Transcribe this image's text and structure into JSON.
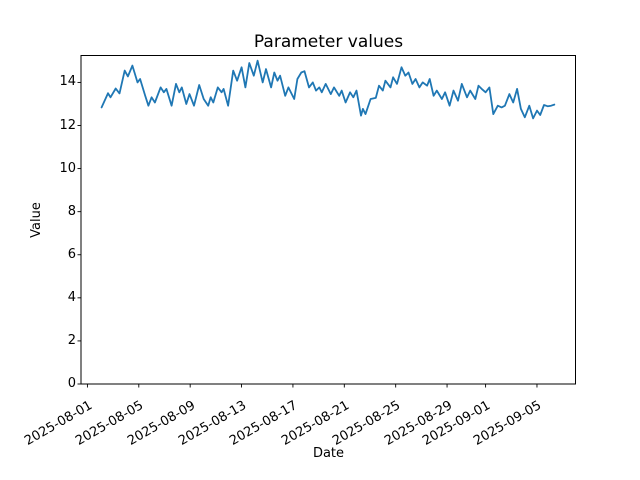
{
  "chart": {
    "title": "Parameter values",
    "xlabel": "Date",
    "ylabel": "Value"
  },
  "chart_data": {
    "type": "line",
    "title": "Parameter values",
    "xlabel": "Date",
    "ylabel": "Value",
    "legend": null,
    "grid": false,
    "series_color": "#1f77b4",
    "x_unit": "days since 2025-08-01 00:00",
    "x_start_date": "2025-08-01",
    "xlim": [
      -0.5,
      38.0
    ],
    "ylim": [
      0,
      15.25
    ],
    "y_ticks": [
      0,
      2,
      4,
      6,
      8,
      10,
      12,
      14
    ],
    "x_ticks": [
      {
        "t": 0,
        "label": "2025-08-01"
      },
      {
        "t": 4,
        "label": "2025-08-05"
      },
      {
        "t": 8,
        "label": "2025-08-09"
      },
      {
        "t": 12,
        "label": "2025-08-13"
      },
      {
        "t": 16,
        "label": "2025-08-17"
      },
      {
        "t": 20,
        "label": "2025-08-21"
      },
      {
        "t": 24,
        "label": "2025-08-25"
      },
      {
        "t": 28,
        "label": "2025-08-29"
      },
      {
        "t": 31,
        "label": "2025-09-01"
      },
      {
        "t": 35,
        "label": "2025-09-05"
      }
    ],
    "x": [
      1.1,
      1.4,
      1.6,
      1.8,
      2.2,
      2.5,
      2.9,
      3.15,
      3.5,
      3.9,
      4.1,
      4.5,
      4.75,
      5.0,
      5.25,
      5.7,
      5.95,
      6.15,
      6.55,
      6.9,
      7.15,
      7.35,
      7.7,
      7.95,
      8.3,
      8.7,
      9.05,
      9.4,
      9.6,
      9.8,
      10.15,
      10.45,
      10.6,
      10.95,
      11.35,
      11.65,
      12.0,
      12.3,
      12.6,
      12.95,
      13.25,
      13.65,
      13.9,
      14.3,
      14.55,
      14.8,
      15.0,
      15.4,
      15.65,
      16.1,
      16.35,
      16.65,
      16.9,
      17.25,
      17.55,
      17.8,
      18.05,
      18.25,
      18.55,
      18.95,
      19.2,
      19.6,
      19.8,
      20.1,
      20.45,
      20.7,
      20.95,
      21.3,
      21.45,
      21.65,
      22.05,
      22.45,
      22.7,
      23.0,
      23.2,
      23.6,
      23.8,
      24.1,
      24.45,
      24.75,
      25.0,
      25.3,
      25.55,
      25.85,
      26.1,
      26.45,
      26.65,
      26.95,
      27.2,
      27.6,
      27.85,
      28.2,
      28.5,
      28.85,
      29.15,
      29.55,
      29.8,
      30.2,
      30.45,
      30.7,
      31.0,
      31.3,
      31.6,
      31.95,
      32.25,
      32.5,
      32.85,
      33.15,
      33.45,
      33.75,
      34.05,
      34.4,
      34.7,
      35.0,
      35.25,
      35.55,
      35.85,
      36.1,
      36.35
    ],
    "y": [
      12.84,
      13.23,
      13.5,
      13.31,
      13.72,
      13.49,
      14.55,
      14.28,
      14.78,
      14.0,
      14.16,
      13.38,
      12.92,
      13.31,
      13.07,
      13.77,
      13.54,
      13.7,
      12.92,
      13.93,
      13.54,
      13.77,
      13.0,
      13.46,
      12.92,
      13.88,
      13.23,
      12.92,
      13.31,
      13.07,
      13.77,
      13.54,
      13.7,
      12.92,
      14.55,
      14.08,
      14.7,
      13.77,
      14.9,
      14.31,
      15.01,
      14.0,
      14.62,
      13.77,
      14.46,
      14.08,
      14.31,
      13.38,
      13.77,
      13.23,
      14.16,
      14.46,
      14.52,
      13.77,
      14.0,
      13.62,
      13.77,
      13.54,
      13.93,
      13.46,
      13.77,
      13.38,
      13.62,
      13.07,
      13.54,
      13.31,
      13.62,
      12.46,
      12.77,
      12.53,
      13.23,
      13.28,
      13.85,
      13.62,
      14.08,
      13.77,
      14.24,
      13.93,
      14.7,
      14.31,
      14.46,
      13.93,
      14.16,
      13.77,
      14.0,
      13.85,
      14.16,
      13.38,
      13.62,
      13.23,
      13.54,
      12.92,
      13.62,
      13.15,
      13.93,
      13.31,
      13.62,
      13.23,
      13.85,
      13.7,
      13.54,
      13.77,
      12.53,
      12.92,
      12.84,
      12.92,
      13.46,
      13.07,
      13.7,
      12.77,
      12.38,
      12.92,
      12.33,
      12.69,
      12.49,
      12.95,
      12.89,
      12.92,
      12.97
    ]
  }
}
